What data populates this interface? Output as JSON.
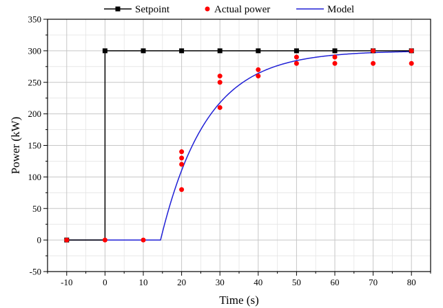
{
  "chart_data": {
    "type": "line",
    "title": "",
    "xlabel": "Time (s)",
    "ylabel": "Power (kW)",
    "xlim": [
      -15,
      85
    ],
    "ylim": [
      -50,
      350
    ],
    "x_ticks": [
      -10,
      0,
      10,
      20,
      30,
      40,
      50,
      60,
      70,
      80
    ],
    "y_ticks": [
      -50,
      0,
      50,
      100,
      150,
      200,
      250,
      300,
      350
    ],
    "grid": true,
    "legend_position": "top",
    "series": [
      {
        "name": "Setpoint",
        "kind": "line-with-square-markers",
        "color": "#000000",
        "points": [
          [
            -10,
            0
          ],
          [
            0,
            0
          ],
          [
            0,
            300
          ],
          [
            10,
            300
          ],
          [
            20,
            300
          ],
          [
            30,
            300
          ],
          [
            40,
            300
          ],
          [
            50,
            300
          ],
          [
            60,
            300
          ],
          [
            70,
            300
          ],
          [
            80,
            300
          ]
        ],
        "markers": [
          [
            -10,
            0
          ],
          [
            0,
            300
          ],
          [
            10,
            300
          ],
          [
            20,
            300
          ],
          [
            30,
            300
          ],
          [
            40,
            300
          ],
          [
            50,
            300
          ],
          [
            60,
            300
          ],
          [
            70,
            300
          ],
          [
            80,
            300
          ]
        ]
      },
      {
        "name": "Actual power",
        "kind": "scatter",
        "color": "#ff0000",
        "points": [
          [
            -10,
            0
          ],
          [
            0,
            0
          ],
          [
            10,
            0
          ],
          [
            20,
            80
          ],
          [
            20,
            120
          ],
          [
            20,
            130
          ],
          [
            20,
            140
          ],
          [
            30,
            210
          ],
          [
            30,
            250
          ],
          [
            30,
            260
          ],
          [
            40,
            260
          ],
          [
            40,
            270
          ],
          [
            50,
            280
          ],
          [
            50,
            290
          ],
          [
            60,
            280
          ],
          [
            60,
            290
          ],
          [
            70,
            280
          ],
          [
            70,
            300
          ],
          [
            80,
            280
          ],
          [
            80,
            300
          ]
        ]
      },
      {
        "name": "Model",
        "kind": "line",
        "color": "#1f1fd6",
        "model": {
          "delay": 14.5,
          "amplitude": 300,
          "tau": 12
        }
      }
    ]
  }
}
